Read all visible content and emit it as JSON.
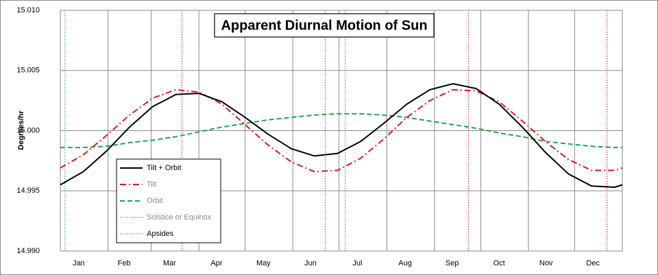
{
  "chart_data": {
    "type": "line",
    "title": "Apparent Diurnal Motion of Sun",
    "y_label": "Degrees/hr",
    "x": [
      0,
      15,
      30,
      45,
      60,
      75,
      90,
      105,
      120,
      135,
      150,
      165,
      180,
      195,
      210,
      225,
      240,
      255,
      270,
      285,
      300,
      315,
      330,
      345,
      360,
      365
    ],
    "xlim": [
      0,
      365
    ],
    "xticks": [
      {
        "value": 15.5,
        "label": "Jan"
      },
      {
        "value": 45,
        "label": "Feb"
      },
      {
        "value": 74.5,
        "label": "Mar"
      },
      {
        "value": 105,
        "label": "Apr"
      },
      {
        "value": 135.5,
        "label": "May"
      },
      {
        "value": 166,
        "label": "Jun"
      },
      {
        "value": 196.5,
        "label": "Jul"
      },
      {
        "value": 227.5,
        "label": "Aug"
      },
      {
        "value": 258,
        "label": "Sep"
      },
      {
        "value": 288.5,
        "label": "Oct"
      },
      {
        "value": 319,
        "label": "Nov"
      },
      {
        "value": 349.5,
        "label": "Dec"
      }
    ],
    "xgrid": [
      31,
      59,
      90,
      120,
      151,
      181,
      212,
      243,
      273,
      304,
      334
    ],
    "ylim": [
      14.99,
      15.01
    ],
    "yticks": [
      {
        "value": 14.99,
        "label": "14.990"
      },
      14.995,
      {
        "value": 15,
        "label": "15.000"
      },
      15.005,
      {
        "value": 15.01,
        "label": "15.010"
      }
    ],
    "grid": true,
    "legend": "lower left",
    "series": [
      {
        "name": "Tilt + Orbit",
        "color": "#000000",
        "line_style": "solid",
        "values": [
          14.9955,
          14.9966,
          14.9983,
          15.0003,
          15.002,
          15.003,
          15.0031,
          15.0024,
          15.0011,
          14.9997,
          14.9985,
          14.9979,
          14.9981,
          14.9991,
          15.0006,
          15.0022,
          15.0034,
          15.0039,
          15.0035,
          15.0022,
          15.0003,
          14.9982,
          14.9964,
          14.9954,
          14.9953,
          14.9955
        ]
      },
      {
        "name": "Tilt",
        "color": "#e8141e",
        "line_style": "dashdot",
        "values": [
          14.9969,
          14.998,
          14.9996,
          15.0013,
          15.0027,
          15.0034,
          15.0032,
          15.0022,
          15.0005,
          14.9988,
          14.9974,
          14.9966,
          14.9967,
          14.9977,
          14.9993,
          15.0011,
          15.0025,
          15.0034,
          15.0033,
          15.0024,
          15.0008,
          14.9991,
          14.9976,
          14.9967,
          14.9967,
          14.9969
        ]
      },
      {
        "name": "Orbit",
        "color": "#1aaa4a",
        "line_style": "dashed",
        "values": [
          14.9986,
          14.9986,
          14.9987,
          14.999,
          14.9992,
          14.9995,
          14.9999,
          15.0003,
          15.0006,
          15.0009,
          15.0011,
          15.0013,
          15.0014,
          15.0014,
          15.0013,
          15.0011,
          15.0008,
          15.0005,
          15.0002,
          14.9998,
          14.9995,
          14.9991,
          14.9989,
          14.9987,
          14.9986,
          14.9986
        ]
      }
    ],
    "vlines": [
      {
        "name": "Solstice or Equinox",
        "color": "#e8141e",
        "x": [
          79,
          172,
          265,
          355
        ]
      },
      {
        "name": "Apsides",
        "color": "#2a8a8a",
        "x": [
          3,
          185
        ]
      }
    ]
  }
}
